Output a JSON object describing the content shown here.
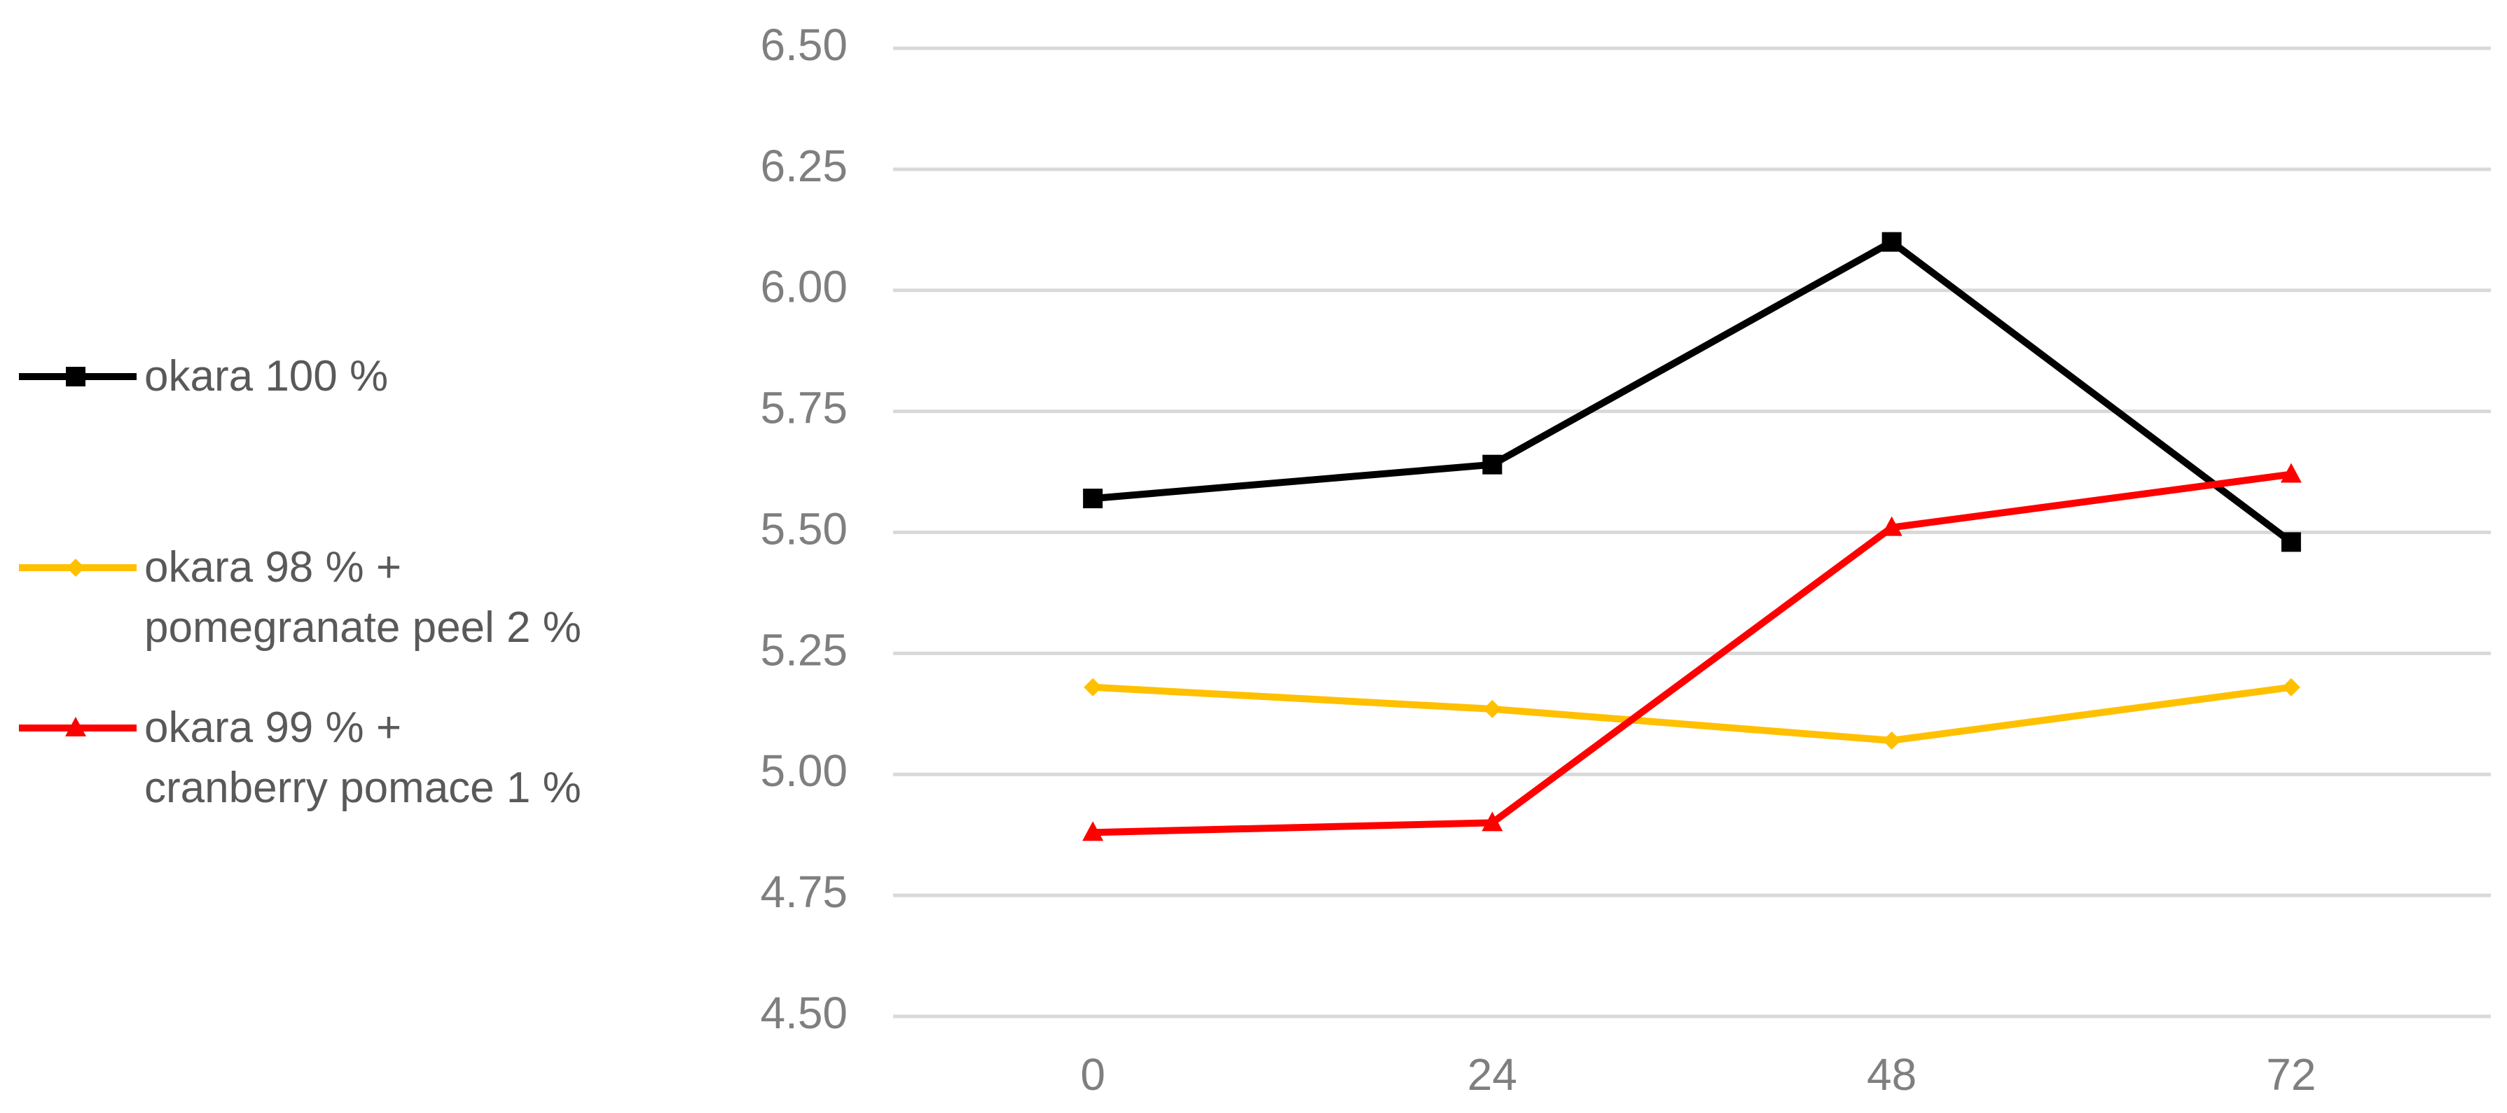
{
  "chart_data": {
    "type": "line",
    "categories": [
      "0",
      "24",
      "48",
      "72"
    ],
    "series": [
      {
        "name": "okara 100 %",
        "color": "#000000",
        "marker": "square",
        "values": [
          5.57,
          5.64,
          6.1,
          5.48
        ]
      },
      {
        "name": "okara 98 % +\npomegranate peel 2 %",
        "color": "#ffc000",
        "marker": "diamond",
        "values": [
          5.18,
          5.135,
          5.07,
          5.18
        ]
      },
      {
        "name": "okara 99 % +\ncranberry pomace 1 %",
        "color": "#ff0000",
        "marker": "triangle",
        "values": [
          4.88,
          4.9,
          5.51,
          5.62
        ]
      }
    ],
    "ylim": [
      4.5,
      6.5
    ],
    "yticks": [
      {
        "value": 4.5,
        "label": "4.50"
      },
      {
        "value": 4.75,
        "label": "4.75"
      },
      {
        "value": 5,
        "label": "5.00"
      },
      {
        "value": 5.25,
        "label": "5.25"
      },
      {
        "value": 5.5,
        "label": "5.50"
      },
      {
        "value": 5.75,
        "label": "5.75"
      },
      {
        "value": 6,
        "label": "6.00"
      },
      {
        "value": 6.25,
        "label": "6.25"
      },
      {
        "value": 6.5,
        "label": "6.50"
      }
    ],
    "grid": true,
    "legend": "left"
  }
}
